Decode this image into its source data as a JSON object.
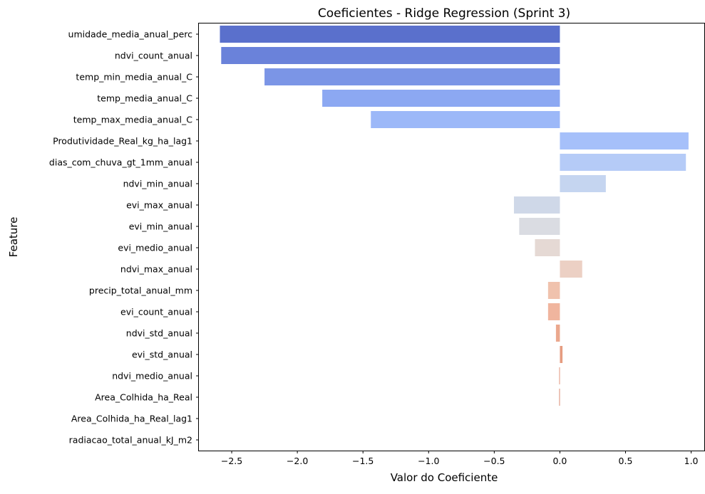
{
  "chart_data": {
    "type": "bar",
    "orientation": "horizontal",
    "title": "Coeficientes - Ridge Regression (Sprint 3)",
    "xlabel": "Valor do Coeficiente",
    "ylabel": "Feature",
    "xlim": [
      -2.75,
      1.1
    ],
    "xticks": [
      -2.5,
      -2.0,
      -1.5,
      -1.0,
      -0.5,
      0.0,
      0.5,
      1.0
    ],
    "xtick_labels": [
      "−2.5",
      "−2.0",
      "−1.5",
      "−1.0",
      "−0.5",
      "0.0",
      "0.5",
      "1.0"
    ],
    "grid": false,
    "palette": "coolwarm",
    "categories": [
      "umidade_media_anual_perc",
      "ndvi_count_anual",
      "temp_min_media_anual_C",
      "temp_media_anual_C",
      "temp_max_media_anual_C",
      "Produtividade_Real_kg_ha_lag1",
      "dias_com_chuva_gt_1mm_anual",
      "ndvi_min_anual",
      "evi_max_anual",
      "evi_min_anual",
      "evi_medio_anual",
      "ndvi_max_anual",
      "precip_total_anual_mm",
      "evi_count_anual",
      "ndvi_std_anual",
      "evi_std_anual",
      "ndvi_medio_anual",
      "Area_Colhida_ha_Real",
      "Area_Colhida_ha_Real_lag1",
      "radiacao_total_anual_kJ_m2"
    ],
    "values": [
      -2.59,
      -2.58,
      -2.25,
      -1.81,
      -1.44,
      0.98,
      0.96,
      0.35,
      -0.35,
      -0.31,
      -0.19,
      0.17,
      -0.09,
      -0.09,
      -0.03,
      0.02,
      -0.005,
      -0.005,
      0.0,
      0.0
    ],
    "colors": [
      "#5a70cc",
      "#6a82da",
      "#7b95e6",
      "#8ca8f2",
      "#9cb8f8",
      "#a6c0fa",
      "#b5cbf7",
      "#c5d5f0",
      "#cfd8e8",
      "#dadce2",
      "#e5d9d4",
      "#ecd0c4",
      "#f0c2ad",
      "#f0b59e",
      "#eba88e",
      "#e69c80",
      "#e08f74",
      "#d98268",
      "#d07560",
      "#c86858"
    ]
  }
}
